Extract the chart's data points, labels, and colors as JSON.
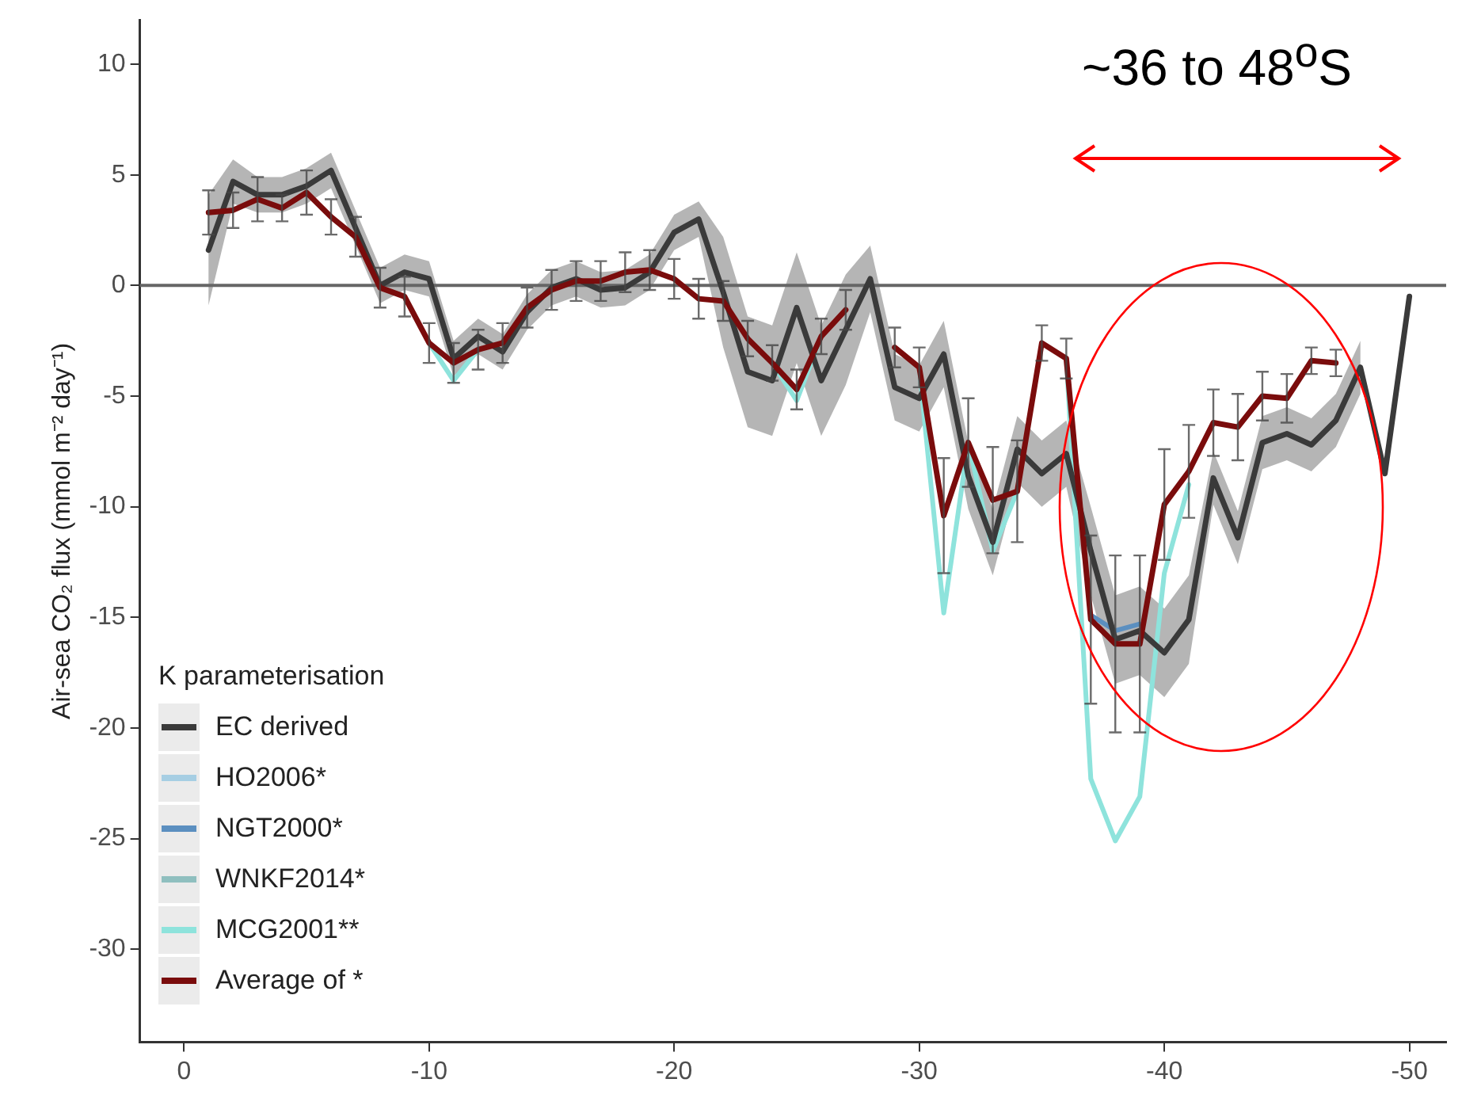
{
  "chart_data": {
    "type": "line",
    "ylabel": "Air-sea CO₂ flux (mmol m⁻² day⁻¹)",
    "legend_title": "K parameterisation",
    "x": [
      -1,
      -2,
      -3,
      -4,
      -5,
      -6,
      -7,
      -8,
      -9,
      -10,
      -11,
      -12,
      -13,
      -14,
      -15,
      -16,
      -17,
      -18,
      -19,
      -20,
      -21,
      -22,
      -23,
      -24,
      -25,
      -26,
      -27,
      -28,
      -29,
      -30,
      -31,
      -32,
      -33,
      -34,
      -35,
      -36,
      -37,
      -38,
      -39,
      -40,
      -41,
      -42,
      -43,
      -44,
      -45,
      -46,
      -47,
      -48,
      -49,
      -50
    ],
    "xlim": [
      1.8,
      -51.5
    ],
    "xticks": [
      0,
      -10,
      -20,
      -30,
      -40,
      -50
    ],
    "ylim": [
      -34.2,
      12
    ],
    "yticks": [
      10,
      5,
      0,
      -5,
      -10,
      -15,
      -20,
      -25,
      -30
    ],
    "grid": false,
    "legend": "bottom left",
    "ref_lines": [
      {
        "axis": "y",
        "value": 0,
        "color": "#666666"
      }
    ],
    "annotations": [
      "~36 to 48$^{o}$S"
    ],
    "series": [
      {
        "name": "HO2006*",
        "color": "#a6cee3",
        "values": [
          null,
          null,
          null,
          null,
          null,
          null,
          null,
          null,
          null,
          null,
          null,
          null,
          null,
          null,
          null,
          null,
          null,
          null,
          null,
          null,
          null,
          null,
          null,
          null,
          null,
          null,
          null,
          null,
          null,
          null,
          null,
          null,
          null,
          null,
          null,
          null,
          null,
          null,
          null,
          null,
          null,
          null,
          null,
          null,
          null,
          null,
          null,
          null,
          null,
          null
        ]
      },
      {
        "name": "NGT2000*",
        "color": "#5b8fc0",
        "values": [
          null,
          null,
          null,
          null,
          null,
          null,
          null,
          null,
          null,
          null,
          null,
          null,
          null,
          null,
          null,
          null,
          null,
          null,
          null,
          null,
          null,
          null,
          null,
          null,
          null,
          null,
          null,
          null,
          null,
          null,
          null,
          null,
          null,
          null,
          null,
          null,
          -14.9,
          -15.6,
          -15.3,
          null,
          null,
          null,
          null,
          null,
          null,
          null,
          null,
          null,
          null,
          null
        ]
      },
      {
        "name": "WNKF2014*",
        "color": "#8fbfbf",
        "values": [
          null,
          null,
          null,
          null,
          null,
          null,
          null,
          null,
          null,
          null,
          null,
          null,
          null,
          null,
          null,
          null,
          null,
          null,
          null,
          null,
          null,
          null,
          null,
          null,
          null,
          null,
          null,
          null,
          null,
          null,
          null,
          null,
          null,
          null,
          null,
          null,
          null,
          null,
          null,
          null,
          null,
          null,
          null,
          null,
          null,
          null,
          null,
          null,
          null,
          null
        ]
      },
      {
        "name": "MCG2001**",
        "color": "#8ee3dc",
        "values": [
          null,
          null,
          null,
          null,
          null,
          null,
          null,
          null,
          null,
          -2.6,
          -4.3,
          -2.9,
          null,
          null,
          null,
          null,
          null,
          null,
          null,
          null,
          null,
          null,
          null,
          -3.5,
          -5.2,
          -2.3,
          null,
          null,
          null,
          -3.7,
          -14.8,
          -7.1,
          -12.0,
          -9.3,
          null,
          -3.3,
          -22.3,
          -25.1,
          -23.1,
          -13.0,
          -9.0,
          null,
          null,
          null,
          null,
          null,
          null,
          null,
          null,
          null
        ]
      },
      {
        "name": "EC derived",
        "color": "#3a3a3a",
        "values": [
          1.6,
          4.7,
          4.1,
          4.1,
          4.5,
          5.2,
          2.6,
          0,
          0.6,
          0.3,
          -3.3,
          -2.3,
          -3.0,
          -1.2,
          -0.1,
          0.3,
          -0.2,
          -0.1,
          0.6,
          2.4,
          3.0,
          -0.3,
          -3.9,
          -4.3,
          -1.0,
          -4.3,
          -2.0,
          0.3,
          -4.6,
          -5.1,
          -3.1,
          -8.6,
          -11.6,
          -7.4,
          -8.5,
          -7.6,
          -12.0,
          -16.0,
          -15.6,
          -16.6,
          -15.1,
          -8.7,
          -11.4,
          -7.1,
          -6.7,
          -7.2,
          -6.1,
          -3.7,
          -8.5,
          -0.5
        ],
        "lower": [
          -0.9,
          3.7,
          3.3,
          3.3,
          3.7,
          4.4,
          1.8,
          -0.8,
          -0.2,
          -0.5,
          -4.1,
          -3.1,
          -3.8,
          -2.0,
          -0.9,
          -0.5,
          -1.0,
          -0.9,
          -0.2,
          1.6,
          2.2,
          -2.8,
          -6.4,
          -6.8,
          -3.5,
          -6.8,
          -4.5,
          -1.2,
          -6.1,
          -6.6,
          -4.6,
          -10.1,
          -13.1,
          -8.9,
          -10.0,
          -9.1,
          -14.0,
          -18.0,
          -17.6,
          -18.6,
          -17.1,
          -9.9,
          -12.6,
          -8.3,
          -7.9,
          -8.4,
          -7.3,
          -4.9,
          null,
          null
        ],
        "upper": [
          4.1,
          5.7,
          4.9,
          4.9,
          5.3,
          6.0,
          3.4,
          0.8,
          1.4,
          1.1,
          -2.5,
          -1.5,
          -2.2,
          -0.4,
          0.7,
          1.1,
          0.6,
          0.7,
          1.4,
          3.2,
          3.8,
          2.2,
          -1.4,
          -1.8,
          1.5,
          -1.8,
          0.5,
          1.8,
          -3.1,
          -3.6,
          -1.6,
          -7.1,
          -10.1,
          -5.9,
          -7.0,
          -6.1,
          -10.0,
          -14.0,
          -13.6,
          -14.6,
          -13.1,
          -7.5,
          -10.2,
          -5.9,
          -5.5,
          -6.0,
          -4.9,
          -2.5,
          null,
          null
        ]
      },
      {
        "name": "Average of *",
        "color": "#7a0c0c",
        "values": [
          3.3,
          3.4,
          3.9,
          3.5,
          4.2,
          3.1,
          2.2,
          -0.1,
          -0.5,
          -2.6,
          -3.5,
          -2.9,
          -2.6,
          -1.0,
          -0.2,
          0.2,
          0.2,
          0.6,
          0.7,
          0.3,
          -0.6,
          -0.7,
          -2.4,
          -3.5,
          -4.7,
          -2.3,
          -1.1,
          null,
          -2.8,
          -3.7,
          -10.4,
          -7.1,
          -9.7,
          -9.3,
          -2.6,
          -3.3,
          -15.1,
          -16.2,
          -16.2,
          -9.9,
          -8.4,
          -6.2,
          -6.4,
          -5.0,
          -5.1,
          -3.4,
          -3.5,
          null,
          null,
          null
        ],
        "errors": [
          1.0,
          0.8,
          1.0,
          0.6,
          1.0,
          0.8,
          0.9,
          0.9,
          0.9,
          0.9,
          0.9,
          0.9,
          0.9,
          0.9,
          0.9,
          0.9,
          0.9,
          0.9,
          0.9,
          0.9,
          0.9,
          0.9,
          0.8,
          0.8,
          0.9,
          0.8,
          0.9,
          null,
          0.9,
          0.9,
          2.6,
          2.0,
          2.4,
          2.3,
          0.8,
          0.9,
          3.8,
          4.0,
          4.0,
          2.5,
          2.1,
          1.5,
          1.5,
          1.1,
          1.1,
          0.6,
          0.6,
          null,
          null,
          null
        ]
      }
    ]
  }
}
